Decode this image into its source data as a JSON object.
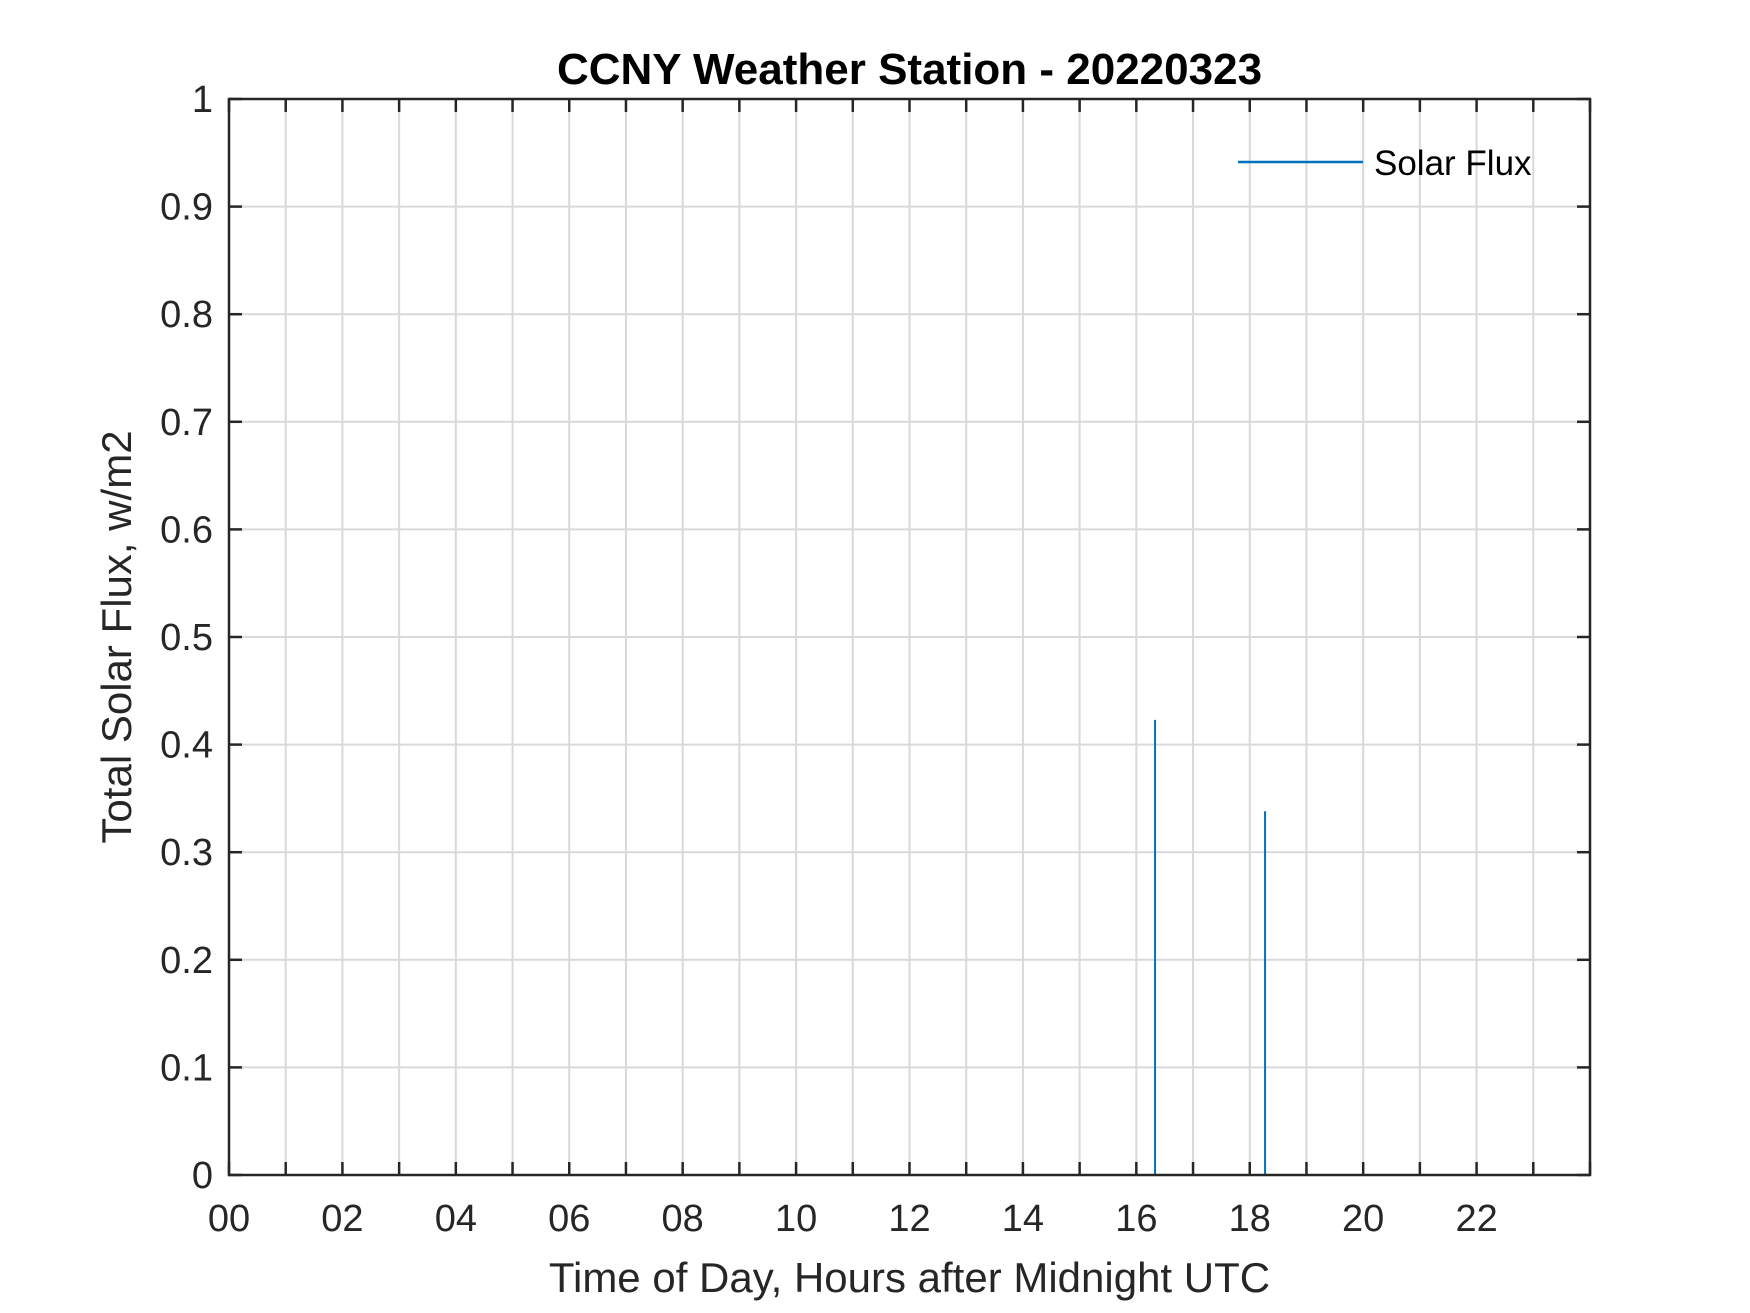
{
  "chart_data": {
    "type": "line",
    "title": "CCNY Weather Station - 20220323",
    "xlabel": "Time of Day, Hours after Midnight UTC",
    "ylabel": "Total Solar Flux, w/m2",
    "xlim": [
      0,
      24
    ],
    "ylim": [
      0,
      1
    ],
    "x_ticks": [
      0,
      2,
      4,
      6,
      8,
      10,
      12,
      14,
      16,
      18,
      20,
      22
    ],
    "x_tick_labels": [
      "00",
      "02",
      "04",
      "06",
      "08",
      "10",
      "12",
      "14",
      "16",
      "18",
      "20",
      "22"
    ],
    "x_grid_step": 1,
    "y_ticks": [
      0,
      0.1,
      0.2,
      0.3,
      0.4,
      0.5,
      0.6,
      0.7,
      0.8,
      0.9,
      1
    ],
    "y_tick_labels": [
      "0",
      "0.1",
      "0.2",
      "0.3",
      "0.4",
      "0.5",
      "0.6",
      "0.7",
      "0.8",
      "0.9",
      "1"
    ],
    "grid": true,
    "legend": {
      "position": "top-right",
      "entries": [
        "Solar Flux"
      ]
    },
    "series": [
      {
        "name": "Solar Flux",
        "color": "#0072BD",
        "spikes": [
          {
            "x": 16.33,
            "y": 0.423
          },
          {
            "x": 18.27,
            "y": 0.338
          }
        ]
      }
    ]
  },
  "colors": {
    "axis": "#262626",
    "grid": "#d9d9d9",
    "series": "#0072BD",
    "background": "#ffffff"
  }
}
